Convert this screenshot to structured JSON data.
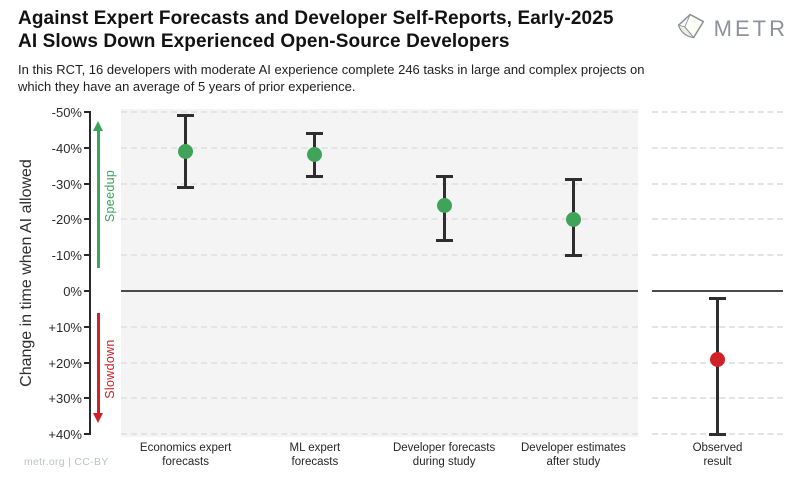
{
  "header": {
    "title_line1": "Against Expert Forecasts and Developer Self-Reports, Early-2025",
    "title_line2": "AI Slows Down Experienced Open-Source Developers",
    "subtitle": "In this RCT, 16 developers with moderate AI experience complete 246 tasks in large and complex projects on which they have an average of 5 years of prior experience.",
    "logo": {
      "text": "METR",
      "icon": "metr-gem-icon"
    }
  },
  "footer": {
    "credit": "metr.org | CC-BY"
  },
  "colors": {
    "speedup_green": "#3ba55b",
    "slowdown_red": "#cf2127",
    "forecast_point_green": "#3fa45a",
    "observed_point_red": "#d12026",
    "error_bar": "#2e2e2e",
    "zero_line": "#4b4b4b",
    "panel_bg": "#f4f4f5",
    "gridline": "#e4e4e6"
  },
  "chart_data": {
    "type": "scatter",
    "ylabel": "Change in time when AI allowed",
    "ylim": [
      -50,
      40
    ],
    "orientation_note": "y axis inverted: negative values (speedup) plotted toward the top",
    "grid": "horizontal dashed, solid dark line at 0%",
    "y_ticks": [
      {
        "value": -50,
        "label": "-50%"
      },
      {
        "value": -40,
        "label": "-40%"
      },
      {
        "value": -30,
        "label": "-30%"
      },
      {
        "value": -20,
        "label": "-20%"
      },
      {
        "value": -10,
        "label": "-10%"
      },
      {
        "value": 0,
        "label": "0%"
      },
      {
        "value": 10,
        "label": "+10%"
      },
      {
        "value": 20,
        "label": "+20%"
      },
      {
        "value": 30,
        "label": "+30%"
      },
      {
        "value": 40,
        "label": "+40%"
      }
    ],
    "annotations": [
      {
        "text": "Speedup",
        "direction": "up",
        "color": "#3ba55b"
      },
      {
        "text": "Slowdown",
        "direction": "down",
        "color": "#cf2127"
      }
    ],
    "categories": [
      "Economics expert forecasts",
      "ML expert forecasts",
      "Developer forecasts during study",
      "Developer estimates after study",
      "Observed result"
    ],
    "points": [
      {
        "category_line1": "Economics expert",
        "category_line2": "forecasts",
        "value": -39,
        "ci_low": -49,
        "ci_high": -29,
        "color": "#3fa45a",
        "panel": "main"
      },
      {
        "category_line1": "ML expert",
        "category_line2": "forecasts",
        "value": -38,
        "ci_low": -44,
        "ci_high": -32,
        "color": "#3fa45a",
        "panel": "main"
      },
      {
        "category_line1": "Developer forecasts",
        "category_line2": "during study",
        "value": -24,
        "ci_low": -32,
        "ci_high": -14,
        "color": "#3fa45a",
        "panel": "main"
      },
      {
        "category_line1": "Developer estimates",
        "category_line2": "after study",
        "value": -20,
        "ci_low": -31,
        "ci_high": -10,
        "color": "#3fa45a",
        "panel": "main"
      },
      {
        "category_line1": "Observed",
        "category_line2": "result",
        "value": 19,
        "ci_low": 2,
        "ci_high": 40,
        "color": "#d12026",
        "panel": "observed"
      }
    ]
  }
}
